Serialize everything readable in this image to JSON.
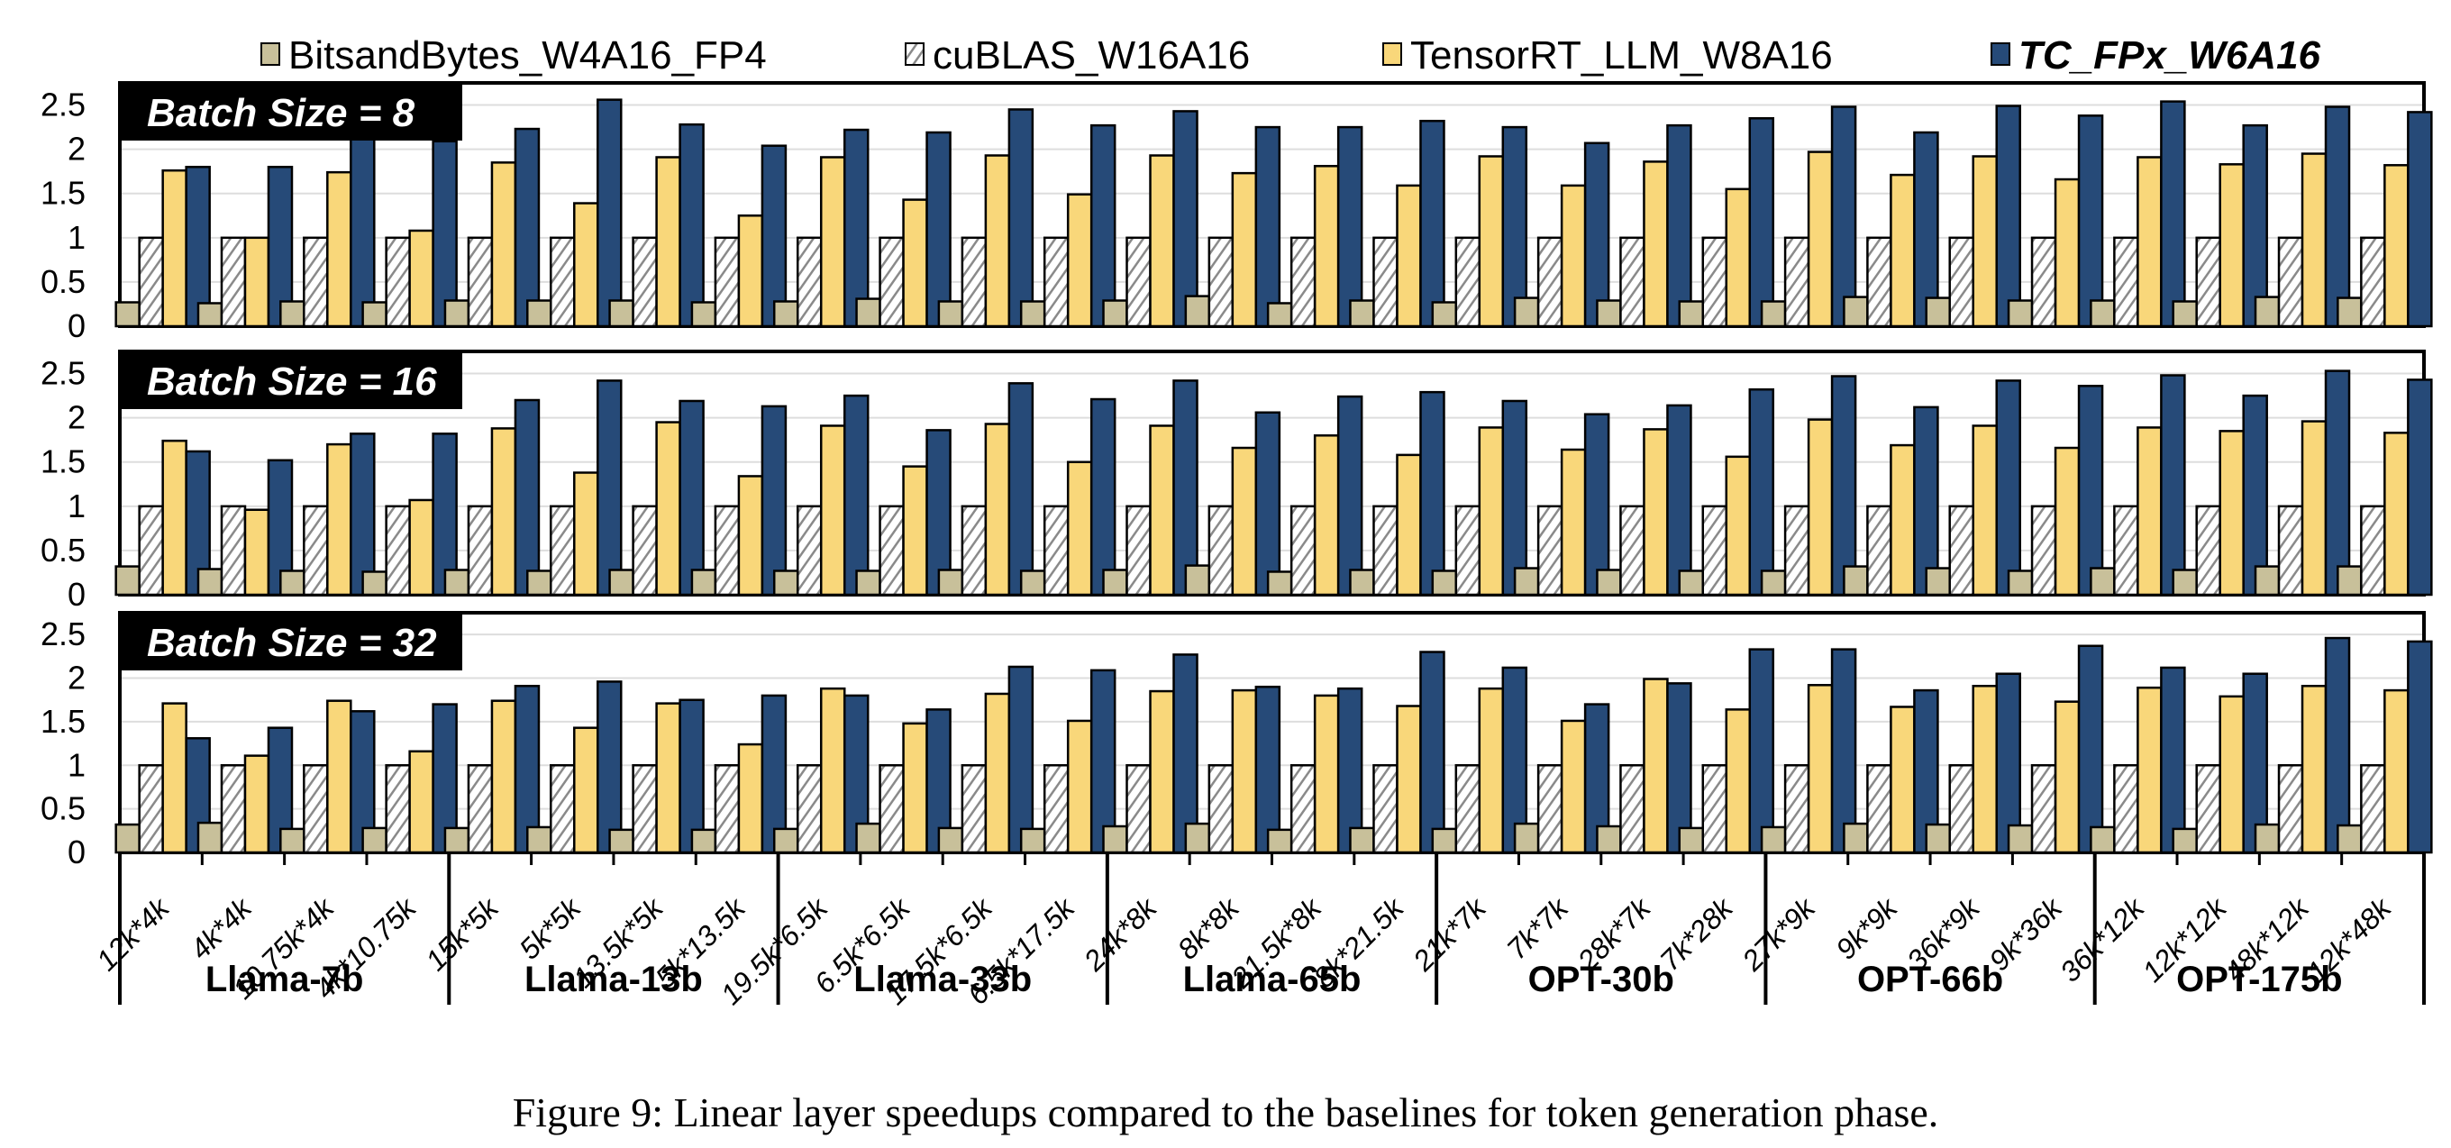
{
  "chart_data": {
    "type": "bar",
    "title": "",
    "caption": "Figure 9: Linear layer speedups compared to the baselines for token generation phase.",
    "xlabel": "",
    "ylabel": "",
    "ylim": [
      0,
      2.75
    ],
    "yticks": [
      "0",
      "0.5",
      "1",
      "1.5",
      "2",
      "2.5"
    ],
    "ytick_values": [
      0,
      0.5,
      1,
      1.5,
      2,
      2.5
    ],
    "grid": true,
    "legend_position": "top",
    "legend": [
      {
        "name": "BitsandBytes_W4A16_FP4",
        "color": "#c8c09a",
        "pattern": "solid",
        "emphasis": false
      },
      {
        "name": "cuBLAS_W16A16",
        "color": "#ffffff",
        "pattern": "hatch",
        "emphasis": false
      },
      {
        "name": "TensorRT_LLM_W8A16",
        "color": "#f9d77a",
        "pattern": "solid",
        "emphasis": false
      },
      {
        "name": "TC_FPx_W6A16",
        "color": "#264a78",
        "pattern": "solid",
        "emphasis": true
      }
    ],
    "groups": [
      {
        "name": "Llama-7b",
        "categories": [
          "12k*4k",
          "4k*4k",
          "10.75k*4k",
          "4k*10.75k"
        ]
      },
      {
        "name": "Llama-13b",
        "categories": [
          "15k*5k",
          "5k*5k",
          "13.5k*5k",
          "5k*13.5k"
        ]
      },
      {
        "name": "Llama-33b",
        "categories": [
          "19.5k*6.5k",
          "6.5k*6.5k",
          "17.5k*6.5k",
          "6.5k*17.5k"
        ]
      },
      {
        "name": "Llama-65b",
        "categories": [
          "24k*8k",
          "8k*8k",
          "21.5k*8k",
          "8k*21.5k"
        ]
      },
      {
        "name": "OPT-30b",
        "categories": [
          "21k*7k",
          "7k*7k",
          "28k*7k",
          "7k*28k"
        ]
      },
      {
        "name": "OPT-66b",
        "categories": [
          "27k*9k",
          "9k*9k",
          "36k*9k",
          "9k*36k"
        ]
      },
      {
        "name": "OPT-175b",
        "categories": [
          "36k*12k",
          "12k*12k",
          "48k*12k",
          "12k*48k"
        ]
      }
    ],
    "panels": [
      {
        "label": "Batch Size = 8",
        "series": [
          {
            "name": "BitsandBytes_W4A16_FP4",
            "values": [
              0.27,
              0.26,
              0.28,
              0.27,
              0.29,
              0.29,
              0.29,
              0.27,
              0.28,
              0.31,
              0.28,
              0.28,
              0.29,
              0.34,
              0.26,
              0.29,
              0.27,
              0.32,
              0.29,
              0.28,
              0.28,
              0.33,
              0.32,
              0.29,
              0.29,
              0.28,
              0.33,
              0.32
            ]
          },
          {
            "name": "cuBLAS_W16A16",
            "values": [
              1,
              1,
              1,
              1,
              1,
              1,
              1,
              1,
              1,
              1,
              1,
              1,
              1,
              1,
              1,
              1,
              1,
              1,
              1,
              1,
              1,
              1,
              1,
              1,
              1,
              1,
              1,
              1
            ]
          },
          {
            "name": "TensorRT_LLM_W8A16",
            "values": [
              1.76,
              1.0,
              1.74,
              1.08,
              1.85,
              1.39,
              1.91,
              1.25,
              1.91,
              1.43,
              1.93,
              1.49,
              1.93,
              1.73,
              1.81,
              1.59,
              1.92,
              1.59,
              1.86,
              1.55,
              1.97,
              1.71,
              1.92,
              1.66,
              1.91,
              1.83,
              1.95,
              1.82
            ]
          },
          {
            "name": "TC_FPx_W6A16",
            "values": [
              1.8,
              1.8,
              2.15,
              2.09,
              2.23,
              2.56,
              2.28,
              2.04,
              2.22,
              2.19,
              2.45,
              2.27,
              2.43,
              2.25,
              2.25,
              2.32,
              2.25,
              2.07,
              2.27,
              2.35,
              2.48,
              2.19,
              2.49,
              2.38,
              2.54,
              2.27,
              2.48,
              2.42
            ]
          }
        ]
      },
      {
        "label": "Batch Size = 16",
        "series": [
          {
            "name": "BitsandBytes_W4A16_FP4",
            "values": [
              0.32,
              0.29,
              0.27,
              0.26,
              0.28,
              0.27,
              0.28,
              0.28,
              0.27,
              0.27,
              0.28,
              0.27,
              0.28,
              0.33,
              0.26,
              0.28,
              0.27,
              0.3,
              0.28,
              0.27,
              0.27,
              0.32,
              0.3,
              0.27,
              0.3,
              0.28,
              0.32,
              0.32
            ]
          },
          {
            "name": "cuBLAS_W16A16",
            "values": [
              1,
              1,
              1,
              1,
              1,
              1,
              1,
              1,
              1,
              1,
              1,
              1,
              1,
              1,
              1,
              1,
              1,
              1,
              1,
              1,
              1,
              1,
              1,
              1,
              1,
              1,
              1,
              1
            ]
          },
          {
            "name": "TensorRT_LLM_W8A16",
            "values": [
              1.74,
              0.96,
              1.7,
              1.07,
              1.88,
              1.38,
              1.95,
              1.34,
              1.91,
              1.45,
              1.93,
              1.5,
              1.91,
              1.66,
              1.8,
              1.58,
              1.89,
              1.64,
              1.87,
              1.56,
              1.98,
              1.69,
              1.91,
              1.66,
              1.89,
              1.85,
              1.96,
              1.83
            ]
          },
          {
            "name": "TC_FPx_W6A16",
            "values": [
              1.62,
              1.52,
              1.82,
              1.82,
              2.2,
              2.42,
              2.19,
              2.13,
              2.25,
              1.86,
              2.39,
              2.21,
              2.42,
              2.06,
              2.24,
              2.29,
              2.19,
              2.04,
              2.14,
              2.32,
              2.47,
              2.12,
              2.42,
              2.36,
              2.48,
              2.25,
              2.53,
              2.43
            ]
          }
        ]
      },
      {
        "label": "Batch Size = 32",
        "series": [
          {
            "name": "BitsandBytes_W4A16_FP4",
            "values": [
              0.32,
              0.34,
              0.27,
              0.28,
              0.28,
              0.29,
              0.26,
              0.26,
              0.27,
              0.33,
              0.28,
              0.27,
              0.3,
              0.33,
              0.26,
              0.28,
              0.27,
              0.33,
              0.3,
              0.28,
              0.29,
              0.33,
              0.32,
              0.31,
              0.29,
              0.27,
              0.32,
              0.31
            ]
          },
          {
            "name": "cuBLAS_W16A16",
            "values": [
              1,
              1,
              1,
              1,
              1,
              1,
              1,
              1,
              1,
              1,
              1,
              1,
              1,
              1,
              1,
              1,
              1,
              1,
              1,
              1,
              1,
              1,
              1,
              1,
              1,
              1,
              1,
              1
            ]
          },
          {
            "name": "TensorRT_LLM_W8A16",
            "values": [
              1.71,
              1.11,
              1.74,
              1.16,
              1.74,
              1.43,
              1.71,
              1.24,
              1.88,
              1.48,
              1.82,
              1.51,
              1.85,
              1.86,
              1.8,
              1.68,
              1.88,
              1.51,
              1.99,
              1.64,
              1.92,
              1.67,
              1.91,
              1.73,
              1.89,
              1.79,
              1.91,
              1.86
            ]
          },
          {
            "name": "TC_FPx_W6A16",
            "values": [
              1.31,
              1.43,
              1.62,
              1.7,
              1.91,
              1.96,
              1.75,
              1.8,
              1.8,
              1.64,
              2.13,
              2.09,
              2.27,
              1.9,
              1.88,
              2.3,
              2.12,
              1.7,
              1.94,
              2.33,
              2.33,
              1.86,
              2.05,
              2.37,
              2.12,
              2.05,
              2.46,
              2.42
            ]
          }
        ]
      }
    ]
  }
}
